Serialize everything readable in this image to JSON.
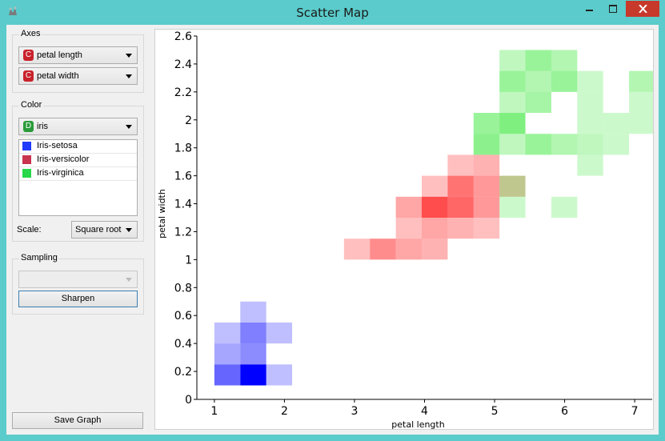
{
  "window": {
    "title": "Scatter Map",
    "app_icon": "orange-widget-icon",
    "controls": {
      "minimize": "minimize-icon",
      "maximize": "maximize-icon",
      "close": "close-icon"
    }
  },
  "sidebar": {
    "axes": {
      "title": "Axes",
      "x_attr": {
        "badge": "C",
        "label": "petal length"
      },
      "y_attr": {
        "badge": "C",
        "label": "petal width"
      }
    },
    "color": {
      "title": "Color",
      "attr": {
        "badge": "D",
        "label": "iris"
      },
      "legend": [
        {
          "label": "Iris-setosa",
          "color": "#1f3bff"
        },
        {
          "label": "Iris-versicolor",
          "color": "#c8334d"
        },
        {
          "label": "Iris-virginica",
          "color": "#27d84a"
        }
      ],
      "scale_label": "Scale:",
      "scale_value": "Square root"
    },
    "sampling": {
      "title": "Sampling",
      "value": "",
      "sharpen_label": "Sharpen"
    },
    "save_label": "Save Graph"
  },
  "chart_data": {
    "type": "heatmap",
    "xlabel": "petal length",
    "ylabel": "petal width",
    "xlim": [
      0.75,
      7.25
    ],
    "ylim": [
      0,
      2.6
    ],
    "xticks": [
      "1",
      "2",
      "3",
      "4",
      "5",
      "6",
      "7"
    ],
    "yticks": [
      "0",
      "0.2",
      "0.4",
      "0.6",
      "0.8",
      "1",
      "1.2",
      "1.4",
      "1.6",
      "1.8",
      "2",
      "2.2",
      "2.4",
      "2.6"
    ],
    "bin_width_x": 0.37,
    "bin_width_y": 0.15,
    "series": [
      {
        "name": "Iris-setosa",
        "color": "#0000ff",
        "cells": [
          {
            "x": 1.0,
            "y": 0.1,
            "v": 0.6
          },
          {
            "x": 1.37,
            "y": 0.1,
            "v": 1.0
          },
          {
            "x": 1.74,
            "y": 0.1,
            "v": 0.25
          },
          {
            "x": 1.0,
            "y": 0.25,
            "v": 0.35
          },
          {
            "x": 1.37,
            "y": 0.25,
            "v": 0.45
          },
          {
            "x": 1.0,
            "y": 0.4,
            "v": 0.25
          },
          {
            "x": 1.37,
            "y": 0.4,
            "v": 0.5
          },
          {
            "x": 1.74,
            "y": 0.4,
            "v": 0.25
          },
          {
            "x": 1.37,
            "y": 0.55,
            "v": 0.25
          }
        ]
      },
      {
        "name": "Iris-versicolor",
        "color": "#ff0000",
        "cells": [
          {
            "x": 2.85,
            "y": 1.0,
            "v": 0.25
          },
          {
            "x": 3.22,
            "y": 1.0,
            "v": 0.45
          },
          {
            "x": 3.59,
            "y": 1.0,
            "v": 0.35
          },
          {
            "x": 3.96,
            "y": 1.0,
            "v": 0.3
          },
          {
            "x": 3.59,
            "y": 1.15,
            "v": 0.25
          },
          {
            "x": 3.96,
            "y": 1.15,
            "v": 0.35
          },
          {
            "x": 4.33,
            "y": 1.15,
            "v": 0.3
          },
          {
            "x": 4.7,
            "y": 1.15,
            "v": 0.25
          },
          {
            "x": 3.59,
            "y": 1.3,
            "v": 0.35
          },
          {
            "x": 3.96,
            "y": 1.3,
            "v": 0.7
          },
          {
            "x": 4.33,
            "y": 1.3,
            "v": 0.6
          },
          {
            "x": 4.7,
            "y": 1.3,
            "v": 0.4
          },
          {
            "x": 3.96,
            "y": 1.45,
            "v": 0.25
          },
          {
            "x": 4.33,
            "y": 1.45,
            "v": 0.55
          },
          {
            "x": 4.7,
            "y": 1.45,
            "v": 0.4
          },
          {
            "x": 5.07,
            "y": 1.45,
            "v": 0.25
          },
          {
            "x": 4.33,
            "y": 1.6,
            "v": 0.25
          },
          {
            "x": 4.7,
            "y": 1.6,
            "v": 0.3
          }
        ]
      },
      {
        "name": "Iris-virginica",
        "color": "#00e000",
        "cells": [
          {
            "x": 5.07,
            "y": 1.3,
            "v": 0.2
          },
          {
            "x": 5.81,
            "y": 1.3,
            "v": 0.2
          },
          {
            "x": 5.07,
            "y": 1.45,
            "v": 0.25
          },
          {
            "x": 6.18,
            "y": 1.6,
            "v": 0.2
          },
          {
            "x": 4.7,
            "y": 1.75,
            "v": 0.45
          },
          {
            "x": 5.07,
            "y": 1.75,
            "v": 0.25
          },
          {
            "x": 5.44,
            "y": 1.75,
            "v": 0.4
          },
          {
            "x": 5.81,
            "y": 1.75,
            "v": 0.3
          },
          {
            "x": 6.18,
            "y": 1.75,
            "v": 0.25
          },
          {
            "x": 6.55,
            "y": 1.75,
            "v": 0.2
          },
          {
            "x": 4.7,
            "y": 1.9,
            "v": 0.4
          },
          {
            "x": 5.07,
            "y": 1.9,
            "v": 0.5
          },
          {
            "x": 6.18,
            "y": 1.9,
            "v": 0.2
          },
          {
            "x": 6.55,
            "y": 1.9,
            "v": 0.2
          },
          {
            "x": 6.92,
            "y": 1.9,
            "v": 0.2
          },
          {
            "x": 5.07,
            "y": 2.05,
            "v": 0.25
          },
          {
            "x": 5.44,
            "y": 2.05,
            "v": 0.35
          },
          {
            "x": 6.18,
            "y": 2.05,
            "v": 0.2
          },
          {
            "x": 6.92,
            "y": 2.05,
            "v": 0.2
          },
          {
            "x": 5.07,
            "y": 2.2,
            "v": 0.4
          },
          {
            "x": 5.44,
            "y": 2.2,
            "v": 0.3
          },
          {
            "x": 5.81,
            "y": 2.2,
            "v": 0.4
          },
          {
            "x": 6.18,
            "y": 2.2,
            "v": 0.2
          },
          {
            "x": 6.92,
            "y": 2.2,
            "v": 0.3
          },
          {
            "x": 5.07,
            "y": 2.35,
            "v": 0.25
          },
          {
            "x": 5.44,
            "y": 2.35,
            "v": 0.4
          },
          {
            "x": 5.81,
            "y": 2.35,
            "v": 0.3
          }
        ]
      }
    ]
  }
}
